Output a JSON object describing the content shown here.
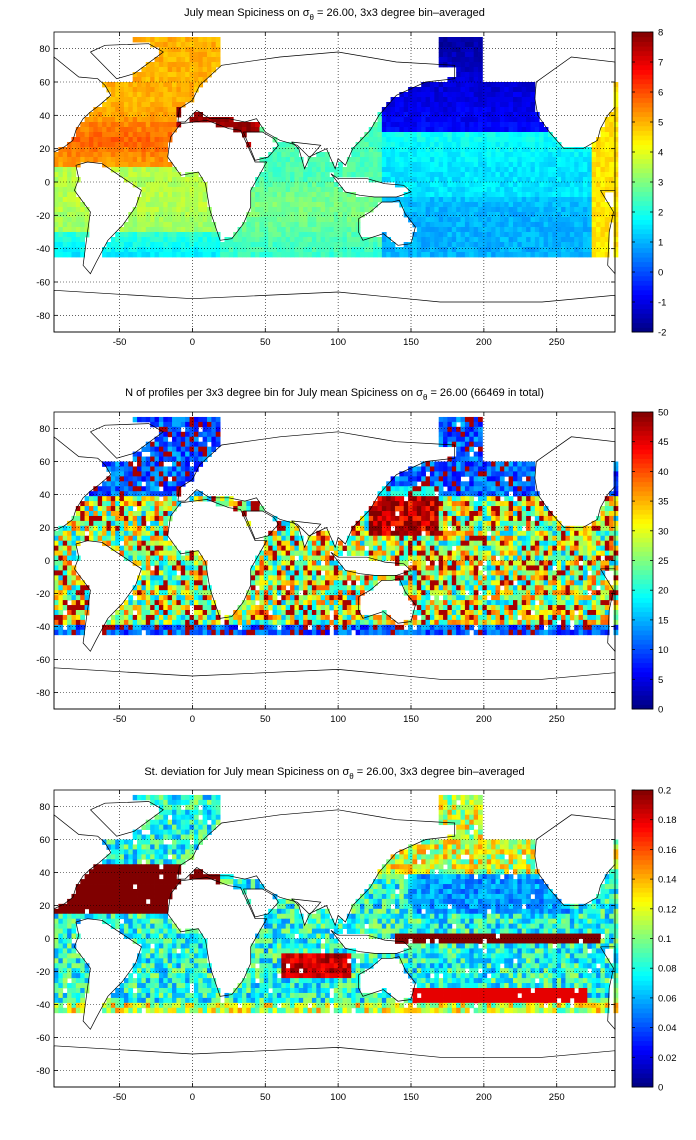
{
  "chart_data": [
    {
      "type": "heatmap",
      "title": "July mean Spiciness on σ",
      "title_sub": "θ",
      "title_rest": " = 26.00, 3x3 degree bin–averaged",
      "xlabel": "",
      "ylabel": "",
      "xlim": [
        -95,
        290
      ],
      "ylim": [
        -90,
        90
      ],
      "xticks": [
        -50,
        0,
        50,
        100,
        150,
        200,
        250
      ],
      "yticks": [
        80,
        60,
        40,
        20,
        0,
        -20,
        -40,
        -60,
        -80
      ],
      "grid": true,
      "colormap": "jet",
      "colorbar": {
        "min": -2,
        "max": 8,
        "ticks": [
          8,
          7,
          6,
          5,
          4,
          3,
          2,
          1,
          0,
          -1,
          -2
        ]
      },
      "field": "spiciness"
    },
    {
      "type": "heatmap",
      "title": "N of profiles per 3x3 degree bin for July mean Spiciness on σ",
      "title_sub": "θ",
      "title_rest": " = 26.00 (66469 in total)",
      "xlabel": "",
      "ylabel": "",
      "xlim": [
        -95,
        290
      ],
      "ylim": [
        -90,
        90
      ],
      "xticks": [
        -50,
        0,
        50,
        100,
        150,
        200,
        250
      ],
      "yticks": [
        80,
        60,
        40,
        20,
        0,
        -20,
        -40,
        -60,
        -80
      ],
      "grid": true,
      "colormap": "jet",
      "colorbar": {
        "min": 0,
        "max": 50,
        "ticks": [
          50,
          45,
          40,
          35,
          30,
          25,
          20,
          15,
          10,
          5,
          0
        ]
      },
      "field": "count"
    },
    {
      "type": "heatmap",
      "title": "St. deviation for July mean Spiciness on σ",
      "title_sub": "θ",
      "title_rest": " = 26.00, 3x3 degree bin–averaged",
      "xlabel": "",
      "ylabel": "",
      "xlim": [
        -95,
        290
      ],
      "ylim": [
        -90,
        90
      ],
      "xticks": [
        -50,
        0,
        50,
        100,
        150,
        200,
        250
      ],
      "yticks": [
        80,
        60,
        40,
        20,
        0,
        -20,
        -40,
        -60,
        -80
      ],
      "grid": true,
      "colormap": "jet",
      "colorbar": {
        "min": 0,
        "max": 0.2,
        "ticks": [
          "0.2",
          "0.18",
          "0.16",
          "0.14",
          "0.12",
          "0.1",
          "0.08",
          "0.06",
          "0.04",
          "0.02",
          "0"
        ]
      },
      "field": "stdev"
    }
  ]
}
